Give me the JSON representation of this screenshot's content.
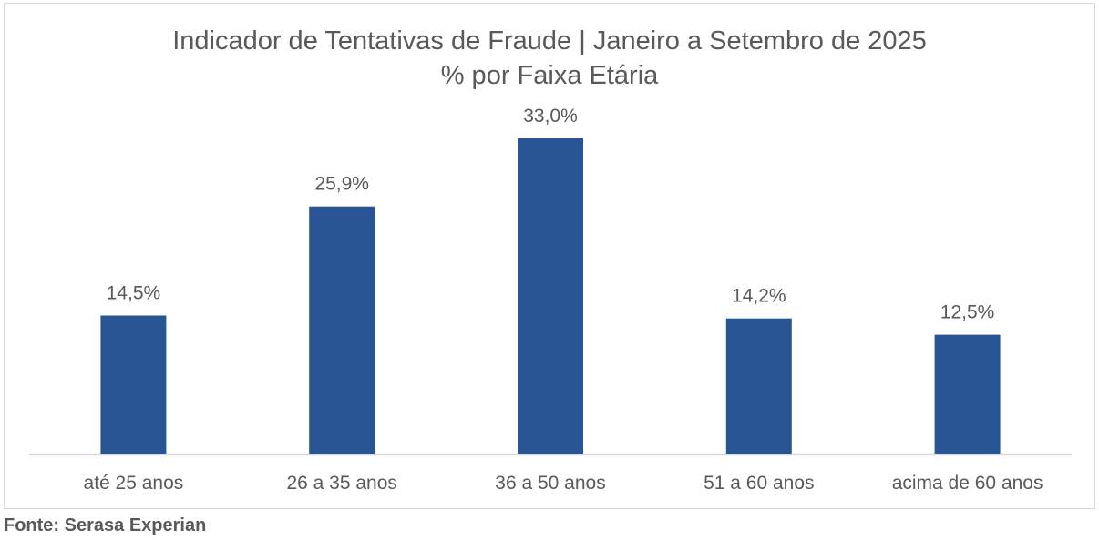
{
  "chart_data": {
    "type": "bar",
    "title": "Indicador de Tentativas de Fraude | Janeiro a Setembro de 2025",
    "subtitle": "% por Faixa Etária",
    "categories": [
      "até 25 anos",
      "26 a 35 anos",
      "36 a 50 anos",
      "51 a 60 anos",
      "acima de 60 anos"
    ],
    "values": [
      14.5,
      25.9,
      33.0,
      14.2,
      12.5
    ],
    "value_labels": [
      "14,5%",
      "25,9%",
      "33,0%",
      "14,2%",
      "12,5%"
    ],
    "xlabel": "",
    "ylabel": "",
    "ylim": [
      0,
      35
    ],
    "grid": false,
    "legend": "none",
    "bar_color": "#2a5594",
    "axis_color": "#d9d9d9",
    "text_color": "#595959"
  },
  "source": "Fonte: Serasa Experian"
}
